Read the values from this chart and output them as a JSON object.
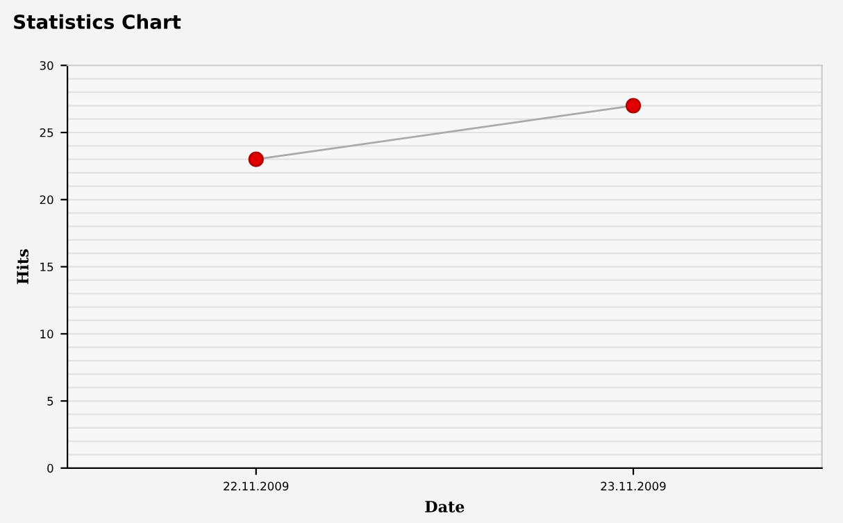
{
  "chart_data": {
    "type": "line",
    "title": "Statistics Chart",
    "xlabel": "Date",
    "ylabel": "Hits",
    "categories": [
      "22.11.2009",
      "23.11.2009"
    ],
    "series": [
      {
        "color": "#e00000",
        "values": [
          23,
          27
        ]
      }
    ],
    "ylim": [
      0,
      30
    ],
    "yticks": [
      0,
      {
        "value": 1,
        "label": null
      },
      {
        "value": 2,
        "label": null
      },
      {
        "value": 3,
        "label": null
      },
      {
        "value": 4,
        "label": null
      },
      5,
      {
        "value": 6,
        "label": null
      },
      {
        "value": 7,
        "label": null
      },
      {
        "value": 8,
        "label": null
      },
      {
        "value": 9,
        "label": null
      },
      10,
      {
        "value": 11,
        "label": null
      },
      {
        "value": 12,
        "label": null
      },
      {
        "value": 13,
        "label": null
      },
      {
        "value": 14,
        "label": null
      },
      15,
      {
        "value": 16,
        "label": null
      },
      {
        "value": 17,
        "label": null
      },
      {
        "value": 18,
        "label": null
      },
      {
        "value": 19,
        "label": null
      },
      20,
      {
        "value": 21,
        "label": null
      },
      {
        "value": 22,
        "label": null
      },
      {
        "value": 23,
        "label": null
      },
      {
        "value": 24,
        "label": null
      },
      25,
      {
        "value": 26,
        "label": null
      },
      {
        "value": 27,
        "label": null
      },
      {
        "value": 28,
        "label": null
      },
      {
        "value": 29,
        "label": null
      },
      30
    ],
    "grid": "y",
    "marker": "circle",
    "line_style": "solid",
    "legend": false
  }
}
